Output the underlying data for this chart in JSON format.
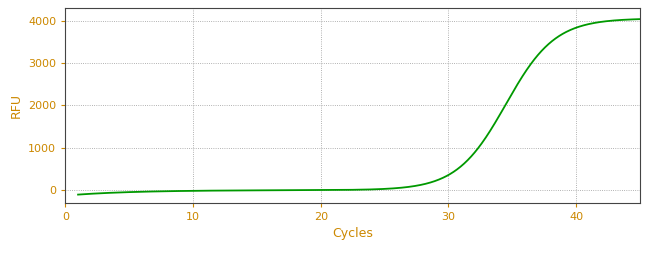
{
  "xlabel": "Cycles",
  "ylabel": "RFU",
  "xlim": [
    0,
    45
  ],
  "ylim": [
    -300,
    4300
  ],
  "xticks": [
    0,
    10,
    20,
    30,
    40
  ],
  "yticks": [
    0,
    1000,
    2000,
    3000,
    4000
  ],
  "line_color": "#009900",
  "line_width": 1.3,
  "background_color": "#ffffff",
  "grid_color": "#999999",
  "axis_color": "#444444",
  "label_color": "#cc8800",
  "tick_color": "#cc8800",
  "sigmoid_L": 4050,
  "sigmoid_k": 0.52,
  "sigmoid_x0": 34.5,
  "x_start": 1,
  "x_end": 45,
  "early_noise_amplitude": -130,
  "early_noise_decay": 0.2,
  "figwidth": 6.53,
  "figheight": 2.6,
  "dpi": 100
}
